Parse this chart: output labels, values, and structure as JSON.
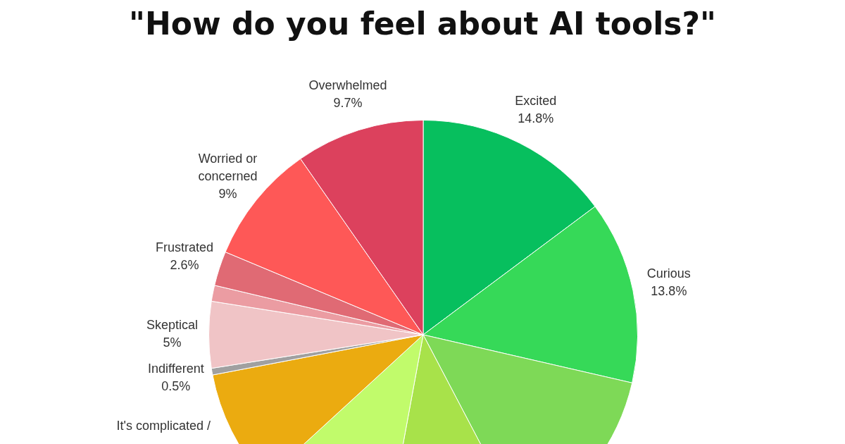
{
  "chart_data": {
    "type": "pie",
    "title": "\"How do you feel about AI tools?\"",
    "categories": [
      "Excited",
      "Curious",
      null,
      null,
      null,
      "It's complicated /",
      "Indifferent",
      "Skeptical",
      null,
      "Frustrated",
      "Worried or concerned",
      "Overwhelmed"
    ],
    "values": [
      14.8,
      13.8,
      13.7,
      10.6,
      10.3,
      8.8,
      0.5,
      5,
      1.2,
      2.6,
      9,
      9.7
    ],
    "value_labels": [
      "14.8%",
      "13.8%",
      null,
      null,
      null,
      null,
      "0.5%",
      "5%",
      null,
      "2.6%",
      "9%",
      "9.7%"
    ],
    "colors": [
      "#07bf5e",
      "#36d958",
      "#7ed957",
      "#a8e24a",
      "#c1fb6b",
      "#ebab10",
      "#a0a0a0",
      "#f0c4c6",
      "#eb9ca2",
      "#e06a74",
      "#fe5857",
      "#dc415d"
    ]
  }
}
